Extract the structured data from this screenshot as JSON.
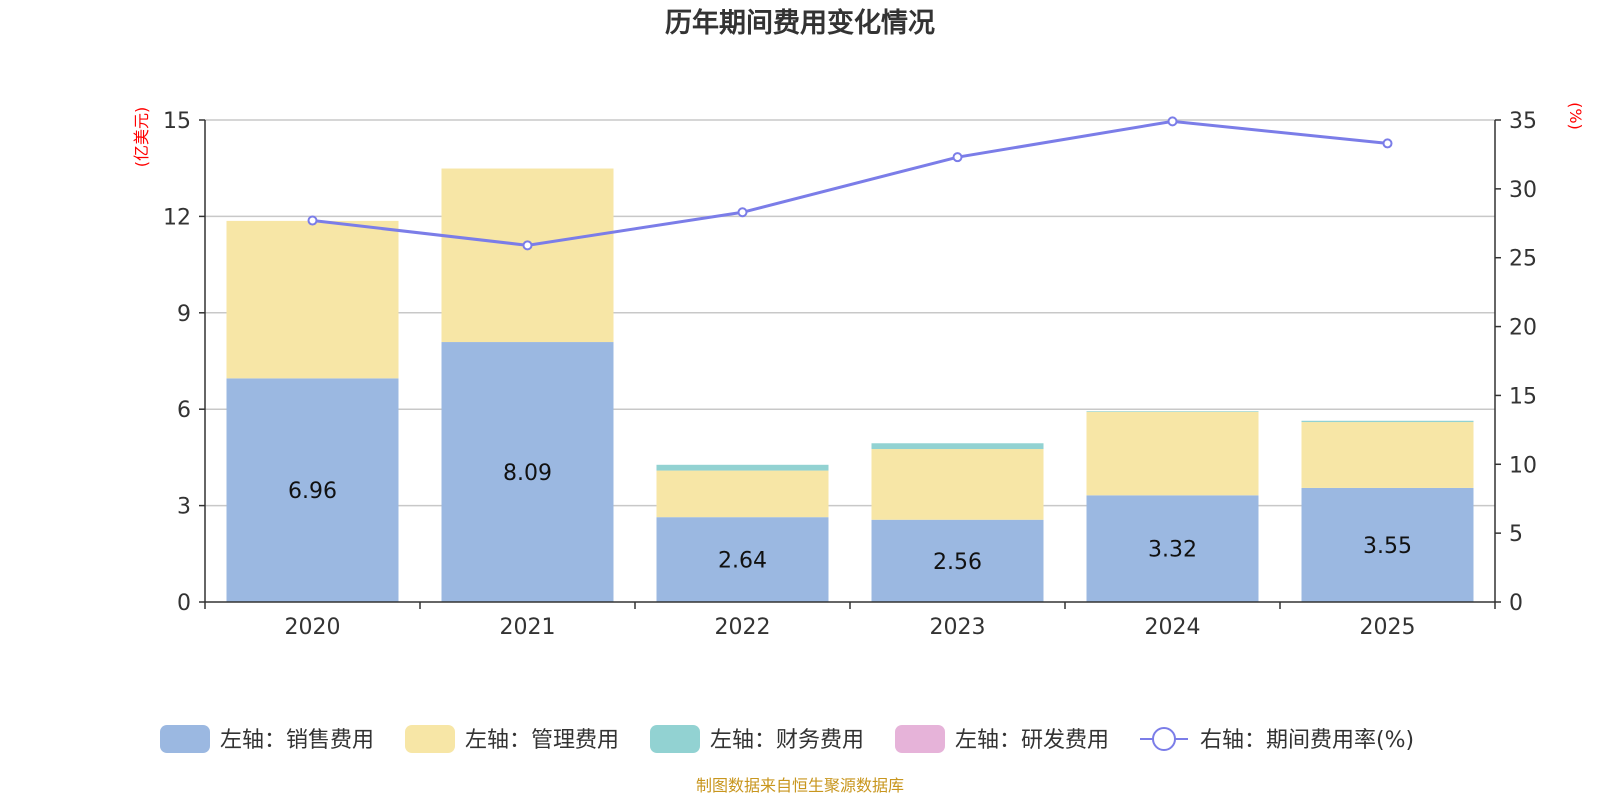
{
  "chart_data": {
    "type": "bar",
    "title": "历年期间费用变化情况",
    "categories": [
      "2020",
      "2021",
      "2022",
      "2023",
      "2024",
      "2025"
    ],
    "left_axis": {
      "unit_label": "(亿美元)",
      "ylim": [
        0,
        15
      ],
      "ticks": [
        "0",
        "3",
        "6",
        "9",
        "12",
        "15"
      ]
    },
    "right_axis": {
      "unit_label": "(%)",
      "ylim": [
        0,
        35
      ],
      "ticks": [
        "0",
        "5",
        "10",
        "15",
        "20",
        "25",
        "30",
        "35"
      ]
    },
    "series": [
      {
        "name": "左轴：销售费用",
        "axis": "left",
        "stacked": true,
        "color": "#9bb8e1",
        "values": [
          6.96,
          8.09,
          2.64,
          2.56,
          3.32,
          3.55
        ],
        "labels": [
          "6.96",
          "8.09",
          "2.64",
          "2.56",
          "3.32",
          "3.55"
        ]
      },
      {
        "name": "左轴：管理费用",
        "axis": "left",
        "stacked": true,
        "color": "#f7e6a6",
        "values": [
          4.9,
          5.4,
          1.45,
          2.2,
          2.6,
          2.05
        ]
      },
      {
        "name": "左轴：财务费用",
        "axis": "left",
        "stacked": true,
        "color": "#92d2d2",
        "values": [
          0.0,
          0.0,
          0.18,
          0.18,
          0.02,
          0.04
        ]
      },
      {
        "name": "左轴：研发费用",
        "axis": "left",
        "stacked": true,
        "color": "#e6b3d9",
        "values": [
          0,
          0,
          0,
          0,
          0,
          0
        ]
      },
      {
        "name": "右轴：期间费用率(%)",
        "axis": "right",
        "type": "line",
        "color": "#7b7de8",
        "values": [
          27.7,
          25.9,
          28.3,
          32.3,
          34.9,
          33.3
        ]
      }
    ],
    "grid": true,
    "legend_position": "bottom"
  },
  "source_note": "制图数据来自恒生聚源数据库"
}
